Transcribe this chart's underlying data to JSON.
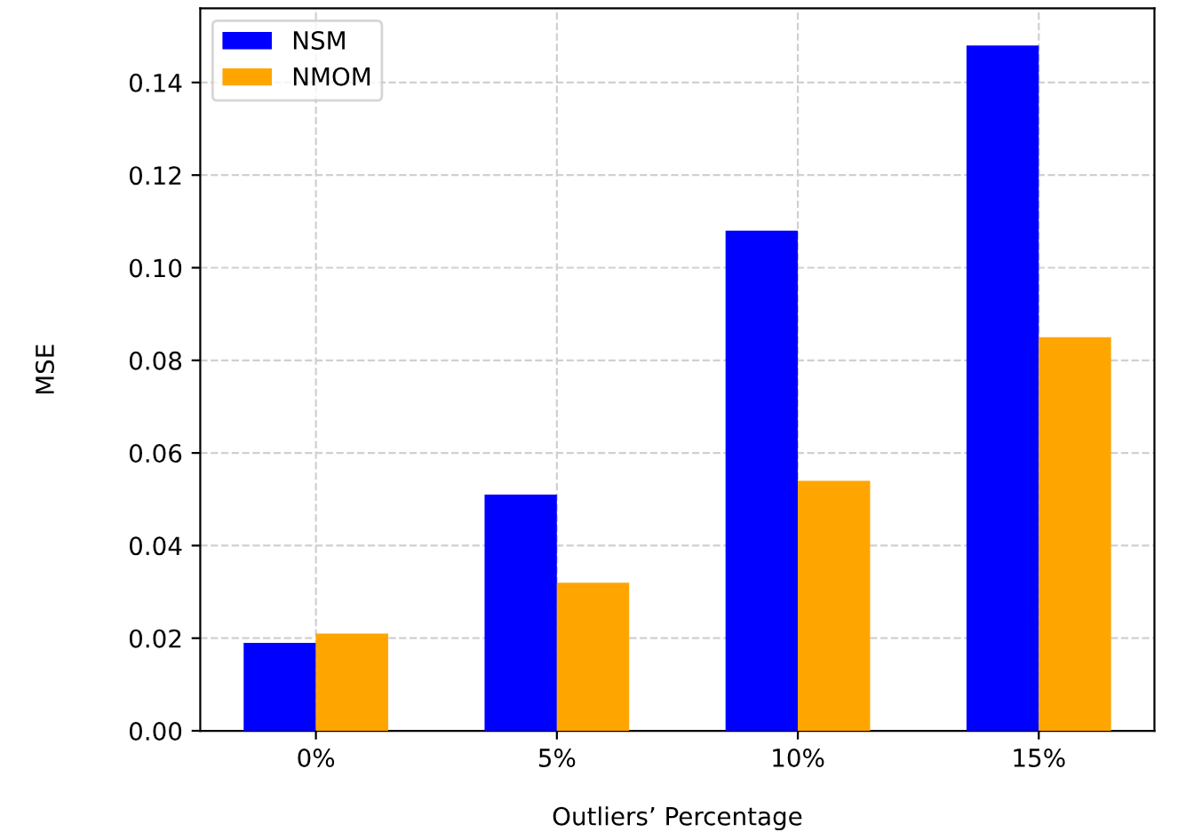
{
  "chart_data": {
    "type": "bar",
    "xlabel": "Outliers’ Percentage",
    "ylabel": "MSE",
    "categories": [
      "0%",
      "5%",
      "10%",
      "15%"
    ],
    "series": [
      {
        "name": "NSM",
        "color": "#0000ff",
        "values": [
          0.019,
          0.051,
          0.108,
          0.148
        ]
      },
      {
        "name": "NMOM",
        "color": "#ffa500",
        "values": [
          0.021,
          0.032,
          0.054,
          0.085
        ]
      }
    ],
    "ylim": [
      0,
      0.156
    ],
    "yticks": [
      {
        "value": 0,
        "label": "0.00"
      },
      {
        "value": 0.02,
        "label": "0.02"
      },
      {
        "value": 0.04,
        "label": "0.04"
      },
      {
        "value": 0.06,
        "label": "0.06"
      },
      {
        "value": 0.08,
        "label": "0.08"
      },
      {
        "value": 0.1,
        "label": "0.10"
      },
      {
        "value": 0.12,
        "label": "0.12"
      },
      {
        "value": 0.14,
        "label": "0.14"
      }
    ],
    "grid": true,
    "legend": "top left",
    "line_style": "dashed"
  }
}
